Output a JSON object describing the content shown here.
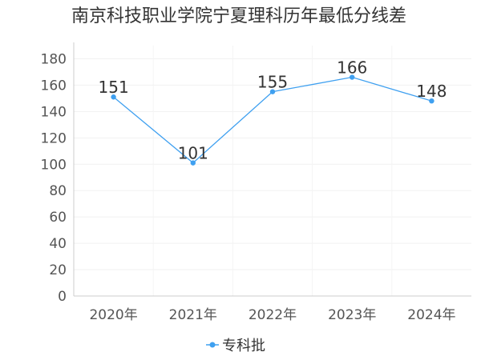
{
  "chart_data": {
    "type": "line",
    "title": "南京科技职业学院宁夏理科历年最低分线差",
    "categories": [
      "2020年",
      "2021年",
      "2022年",
      "2023年",
      "2024年"
    ],
    "series": [
      {
        "name": "专科批",
        "values": [
          151,
          101,
          155,
          166,
          148
        ],
        "color": "#3fa0f0"
      }
    ],
    "data_labels": [
      "151",
      "101",
      "155",
      "166",
      "148"
    ],
    "y_ticks": [
      "0",
      "20",
      "40",
      "60",
      "80",
      "100",
      "120",
      "140",
      "160",
      "180"
    ],
    "ylim": [
      0,
      190
    ],
    "grid": true,
    "legend": "bottom-center",
    "xlabel": "",
    "ylabel": ""
  }
}
